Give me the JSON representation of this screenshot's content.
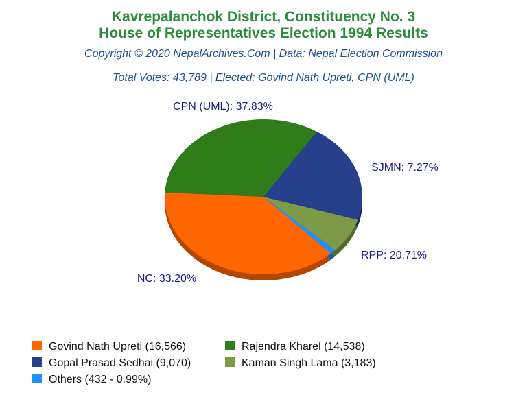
{
  "header": {
    "title_line1": "Kavrepalanchok District, Constituency No. 3",
    "title_line2": "House of Representatives Election 1994 Results",
    "copyright": "Copyright © 2020 NepalArchives.Com | Data: Nepal Election Commission",
    "summary": "Total Votes: 43,789 | Elected: Govind Nath Upreti, CPN (UML)"
  },
  "chart_data": {
    "type": "pie",
    "slices": [
      {
        "label": "CPN (UML): 37.83%",
        "value": 37.83,
        "color": "#ff6600",
        "side": "#b34700"
      },
      {
        "label": "NC: 33.20%",
        "value": 33.2,
        "color": "#2e7d1a",
        "side": "#1d5210"
      },
      {
        "label": "RPP: 20.71%",
        "value": 20.71,
        "color": "#27408b",
        "side": "#17285a"
      },
      {
        "label": "SJMN: 7.27%",
        "value": 7.27,
        "color": "#7d9a47",
        "side": "#55692f"
      },
      {
        "label": "",
        "value": 0.99,
        "color": "#1e90ff",
        "side": "#1160b0"
      }
    ]
  },
  "legend": {
    "items": [
      {
        "label": "Govind Nath Upreti (16,566)",
        "color": "#ff6600"
      },
      {
        "label": "Rajendra Kharel (14,538)",
        "color": "#2e7d1a"
      },
      {
        "label": "Gopal Prasad Sedhai (9,070)",
        "color": "#27408b"
      },
      {
        "label": "Kaman Singh Lama (3,183)",
        "color": "#7d9a47"
      },
      {
        "label": "Others (432 - 0.99%)",
        "color": "#1e90ff"
      }
    ]
  }
}
